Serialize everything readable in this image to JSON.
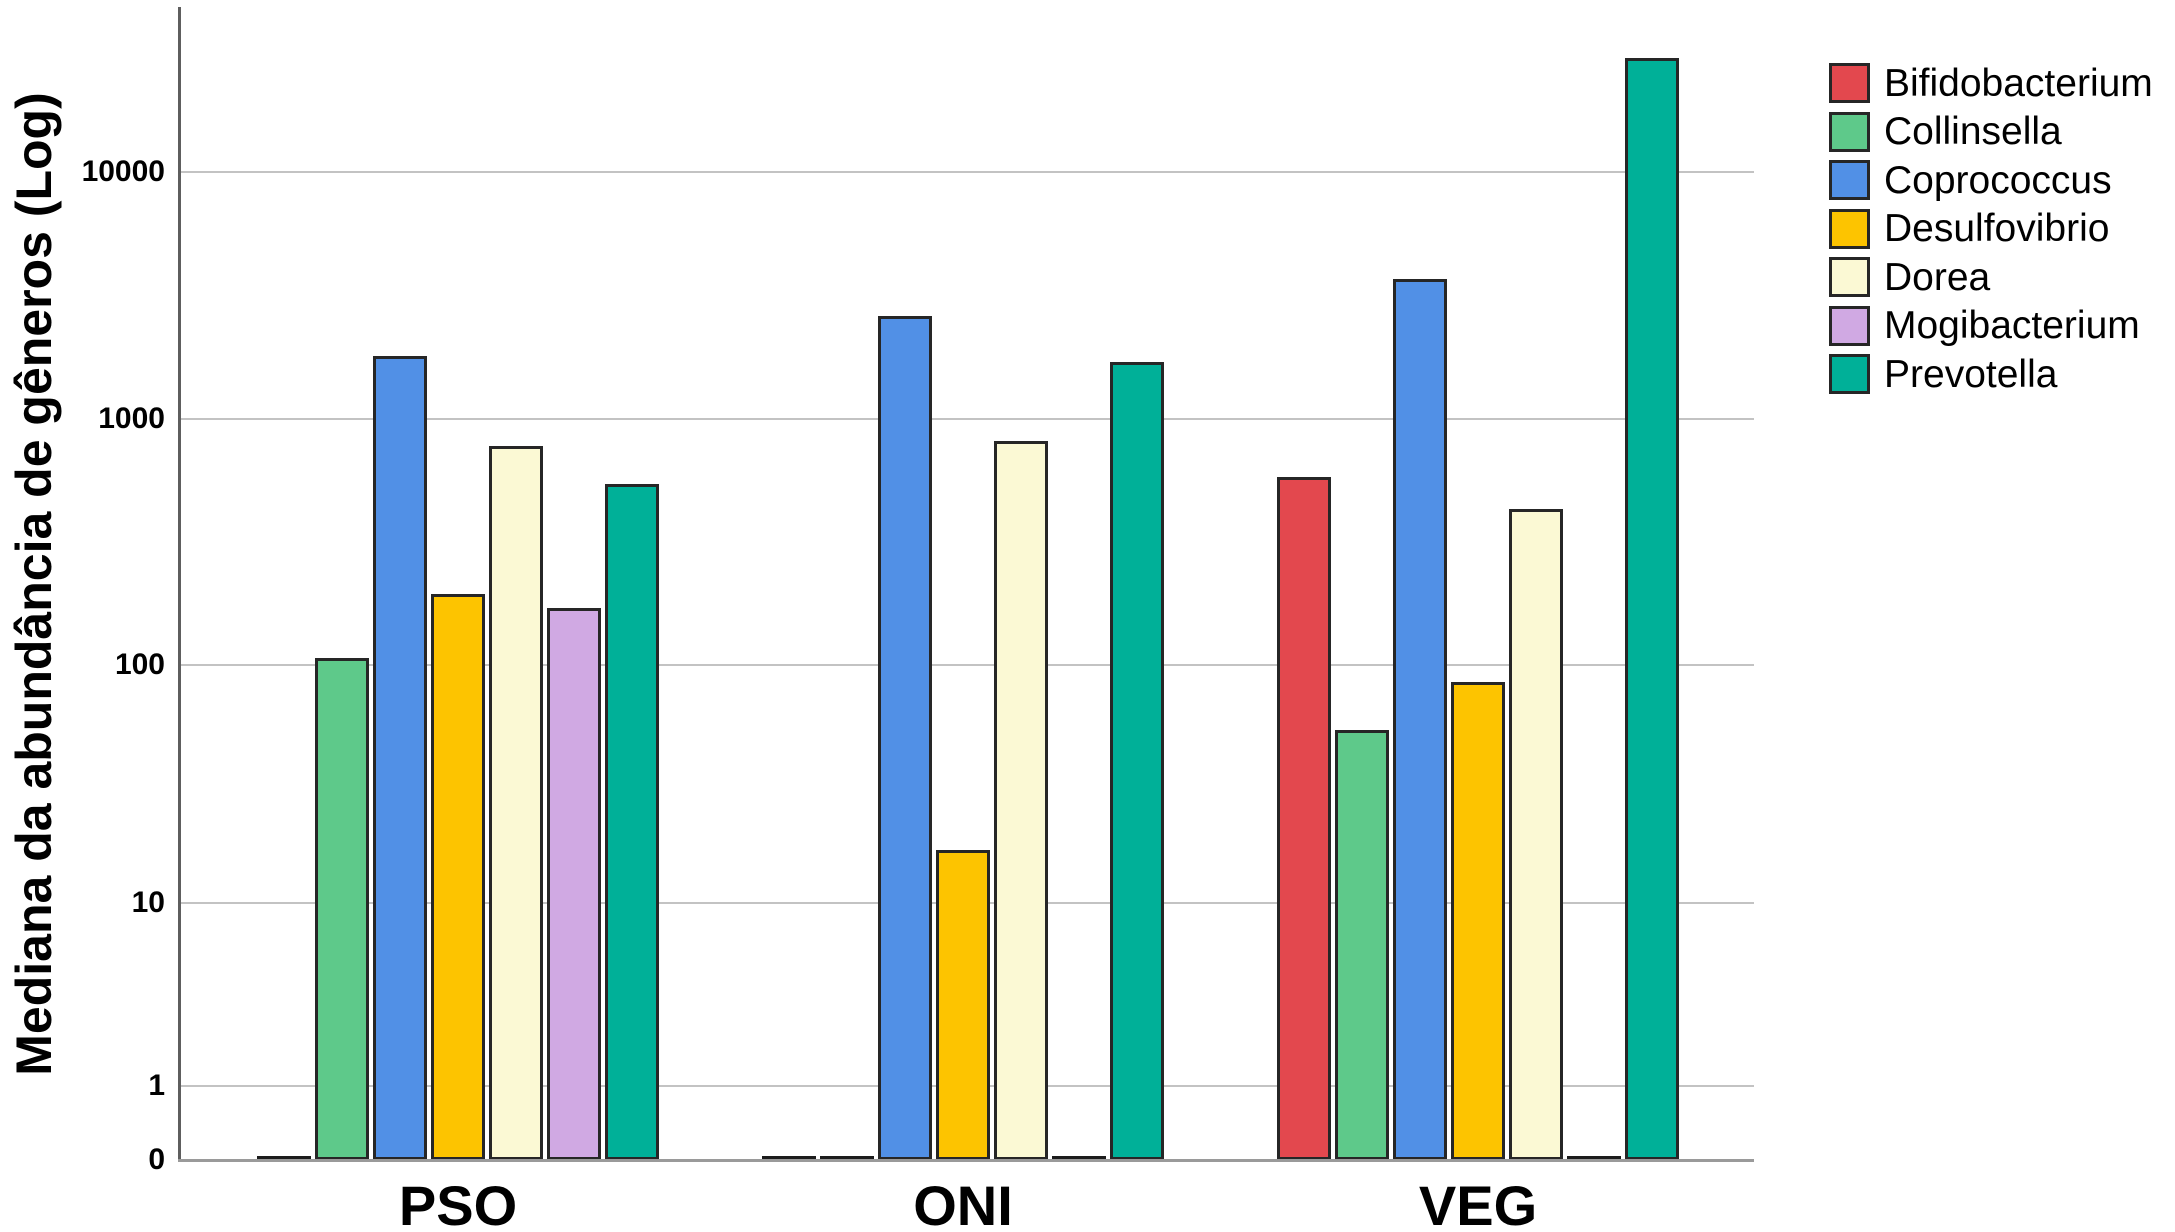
{
  "figure": {
    "background": "#ffffff",
    "ylabel": "Mediana da abundância de gêneros (Log)"
  },
  "chart_data": {
    "type": "bar",
    "title": "",
    "xlabel": "",
    "ylabel": "Mediana da abundância de gêneros (Log)",
    "categories": [
      "PSO",
      "ONI",
      "VEG"
    ],
    "series": [
      {
        "name": "Bifidobacterium",
        "color": "#e3484e",
        "values": [
          0,
          0,
          580
        ]
      },
      {
        "name": "Collinsella",
        "color": "#5ec98a",
        "values": [
          107,
          0,
          54
        ]
      },
      {
        "name": "Coprococcus",
        "color": "#5190e6",
        "values": [
          1800,
          2600,
          3700
        ]
      },
      {
        "name": "Desulfovibrio",
        "color": "#fdc400",
        "values": [
          195,
          17,
          85
        ]
      },
      {
        "name": "Dorea",
        "color": "#fbf9d4",
        "values": [
          780,
          815,
          430
        ]
      },
      {
        "name": "Mogibacterium",
        "color": "#d0a9e3",
        "values": [
          170,
          0,
          0
        ]
      },
      {
        "name": "Prevotella",
        "color": "#00b098",
        "values": [
          545,
          1700,
          29000
        ]
      }
    ],
    "y_ticks": [
      0,
      1,
      10,
      100,
      1000,
      10000
    ],
    "scale": "log10(value+1)",
    "ylim": [
      0,
      40000
    ],
    "grid": true,
    "legend_position": "top-right",
    "legend_entries": [
      "Bifidobacterium",
      "Collinsella",
      "Coprococcus",
      "Desulfovibrio",
      "Dorea",
      "Mogibacterium",
      "Prevotella"
    ]
  },
  "style_colors": {
    "gridline": "#c3c3c3",
    "axis_line": "#5e5e5e",
    "baseline": "#9a9a9a",
    "bar_outline": "#262626",
    "zero_bar": "#1c1c1c",
    "text": "#000000"
  }
}
